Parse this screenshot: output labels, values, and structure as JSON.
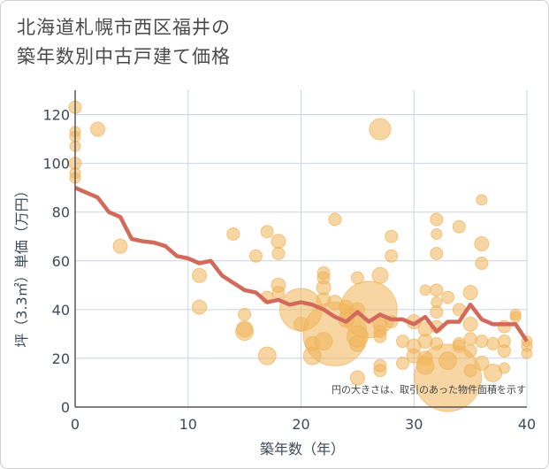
{
  "title_line1": "北海道札幌市西区福井の",
  "title_line2": "築年数別中古戸建て価格",
  "chart_data": {
    "type": "scatter",
    "title": "北海道札幌市西区福井の築年数別中古戸建て価格",
    "xlabel": "築年数（年）",
    "ylabel": "坪（3.3㎡）単価（万円）",
    "xlim": [
      0,
      40
    ],
    "ylim": [
      0,
      130
    ],
    "xticks": [
      0,
      10,
      20,
      30,
      40
    ],
    "yticks": [
      0,
      20,
      40,
      60,
      80,
      100,
      120
    ],
    "note": "円の大きさは、取引のあった物件面積を示す",
    "colors": {
      "bubble": "#f0b45a",
      "line": "#d2695a",
      "grid": "#c8d4e3",
      "axis": "#555555"
    },
    "bubbles": [
      {
        "x": 0,
        "y": 123,
        "s": 7
      },
      {
        "x": 0,
        "y": 113,
        "s": 6
      },
      {
        "x": 0,
        "y": 111,
        "s": 6
      },
      {
        "x": 0,
        "y": 107,
        "s": 6
      },
      {
        "x": 0,
        "y": 100,
        "s": 7
      },
      {
        "x": 0,
        "y": 96,
        "s": 6
      },
      {
        "x": 0,
        "y": 94,
        "s": 6
      },
      {
        "x": 2,
        "y": 114,
        "s": 8
      },
      {
        "x": 4,
        "y": 66,
        "s": 8
      },
      {
        "x": 11,
        "y": 54,
        "s": 8
      },
      {
        "x": 11,
        "y": 41,
        "s": 8
      },
      {
        "x": 14,
        "y": 71,
        "s": 7
      },
      {
        "x": 15,
        "y": 38,
        "s": 7
      },
      {
        "x": 15,
        "y": 32,
        "s": 9
      },
      {
        "x": 15,
        "y": 31,
        "s": 10
      },
      {
        "x": 16,
        "y": 62,
        "s": 7
      },
      {
        "x": 17,
        "y": 72,
        "s": 7
      },
      {
        "x": 17,
        "y": 45,
        "s": 7
      },
      {
        "x": 17,
        "y": 21,
        "s": 10
      },
      {
        "x": 18,
        "y": 68,
        "s": 8
      },
      {
        "x": 18,
        "y": 63,
        "s": 7
      },
      {
        "x": 18,
        "y": 50,
        "s": 8
      },
      {
        "x": 18,
        "y": 47,
        "s": 7
      },
      {
        "x": 20,
        "y": 40,
        "s": 24
      },
      {
        "x": 20,
        "y": 34,
        "s": 8
      },
      {
        "x": 21,
        "y": 21,
        "s": 10
      },
      {
        "x": 21,
        "y": 26,
        "s": 8
      },
      {
        "x": 22,
        "y": 55,
        "s": 7
      },
      {
        "x": 22,
        "y": 53,
        "s": 7
      },
      {
        "x": 22,
        "y": 49,
        "s": 8
      },
      {
        "x": 22,
        "y": 44,
        "s": 8
      },
      {
        "x": 23,
        "y": 77,
        "s": 7
      },
      {
        "x": 23,
        "y": 30,
        "s": 36
      },
      {
        "x": 22,
        "y": 27,
        "s": 10
      },
      {
        "x": 23,
        "y": 43,
        "s": 8
      },
      {
        "x": 24,
        "y": 41,
        "s": 8
      },
      {
        "x": 24,
        "y": 36,
        "s": 9
      },
      {
        "x": 25,
        "y": 53,
        "s": 7
      },
      {
        "x": 25,
        "y": 40,
        "s": 8
      },
      {
        "x": 25,
        "y": 29,
        "s": 12
      },
      {
        "x": 25,
        "y": 26,
        "s": 9
      },
      {
        "x": 25,
        "y": 12,
        "s": 8
      },
      {
        "x": 26,
        "y": 40,
        "s": 32
      },
      {
        "x": 27,
        "y": 114,
        "s": 12
      },
      {
        "x": 27,
        "y": 54,
        "s": 9
      },
      {
        "x": 27,
        "y": 34,
        "s": 8
      },
      {
        "x": 27,
        "y": 31,
        "s": 7
      },
      {
        "x": 27,
        "y": 29,
        "s": 7
      },
      {
        "x": 27,
        "y": 17,
        "s": 7
      },
      {
        "x": 27,
        "y": 15,
        "s": 7
      },
      {
        "x": 28,
        "y": 70,
        "s": 7
      },
      {
        "x": 28,
        "y": 62,
        "s": 7
      },
      {
        "x": 28,
        "y": 35,
        "s": 7
      },
      {
        "x": 29,
        "y": 27,
        "s": 7
      },
      {
        "x": 29,
        "y": 18,
        "s": 7
      },
      {
        "x": 30,
        "y": 35,
        "s": 8
      },
      {
        "x": 30,
        "y": 25,
        "s": 8
      },
      {
        "x": 30,
        "y": 21,
        "s": 8
      },
      {
        "x": 31,
        "y": 48,
        "s": 6
      },
      {
        "x": 31,
        "y": 32,
        "s": 8
      },
      {
        "x": 31,
        "y": 27,
        "s": 8
      },
      {
        "x": 31,
        "y": 20,
        "s": 8
      },
      {
        "x": 31,
        "y": 17,
        "s": 10
      },
      {
        "x": 32,
        "y": 77,
        "s": 7
      },
      {
        "x": 32,
        "y": 71,
        "s": 6
      },
      {
        "x": 32,
        "y": 63,
        "s": 7
      },
      {
        "x": 32,
        "y": 48,
        "s": 7
      },
      {
        "x": 32,
        "y": 43,
        "s": 6
      },
      {
        "x": 32,
        "y": 39,
        "s": 7
      },
      {
        "x": 32,
        "y": 33,
        "s": 7
      },
      {
        "x": 32,
        "y": 26,
        "s": 7
      },
      {
        "x": 33,
        "y": 45,
        "s": 7
      },
      {
        "x": 33,
        "y": 19,
        "s": 10
      },
      {
        "x": 33,
        "y": 12,
        "s": 38
      },
      {
        "x": 34,
        "y": 74,
        "s": 7
      },
      {
        "x": 34,
        "y": 40,
        "s": 7
      },
      {
        "x": 34,
        "y": 25,
        "s": 7
      },
      {
        "x": 34,
        "y": 26,
        "s": 7
      },
      {
        "x": 35,
        "y": 47,
        "s": 8
      },
      {
        "x": 35,
        "y": 34,
        "s": 8
      },
      {
        "x": 35,
        "y": 28,
        "s": 7
      },
      {
        "x": 35,
        "y": 23,
        "s": 7
      },
      {
        "x": 35,
        "y": 15,
        "s": 7
      },
      {
        "x": 36,
        "y": 85,
        "s": 6
      },
      {
        "x": 36,
        "y": 67,
        "s": 8
      },
      {
        "x": 36,
        "y": 59,
        "s": 7
      },
      {
        "x": 36,
        "y": 27,
        "s": 7
      },
      {
        "x": 36,
        "y": 18,
        "s": 8
      },
      {
        "x": 37,
        "y": 26,
        "s": 7
      },
      {
        "x": 37,
        "y": 14,
        "s": 10
      },
      {
        "x": 38,
        "y": 33,
        "s": 7
      },
      {
        "x": 38,
        "y": 27,
        "s": 7
      },
      {
        "x": 38,
        "y": 23,
        "s": 7
      },
      {
        "x": 38,
        "y": 16,
        "s": 6
      },
      {
        "x": 39,
        "y": 38,
        "s": 6
      },
      {
        "x": 39,
        "y": 37,
        "s": 6
      },
      {
        "x": 40,
        "y": 27,
        "s": 6
      },
      {
        "x": 40,
        "y": 25,
        "s": 6
      },
      {
        "x": 40,
        "y": 22,
        "s": 6
      }
    ],
    "trend": {
      "x": [
        0,
        1,
        2,
        3,
        4,
        5,
        6,
        7,
        8,
        9,
        10,
        11,
        12,
        13,
        14,
        15,
        16,
        17,
        18,
        19,
        20,
        21,
        22,
        23,
        24,
        25,
        26,
        27,
        28,
        29,
        30,
        31,
        32,
        33,
        34,
        35,
        36,
        37,
        38,
        39,
        40
      ],
      "y": [
        90,
        88,
        86,
        80,
        78,
        69,
        68,
        67.5,
        66,
        62,
        61,
        59,
        60,
        54,
        51,
        48,
        47,
        43,
        44,
        42,
        43,
        42,
        40,
        37,
        35,
        39,
        35,
        38,
        36,
        36,
        34,
        37,
        31,
        35,
        35,
        42,
        36,
        34,
        34,
        34,
        27
      ]
    }
  }
}
